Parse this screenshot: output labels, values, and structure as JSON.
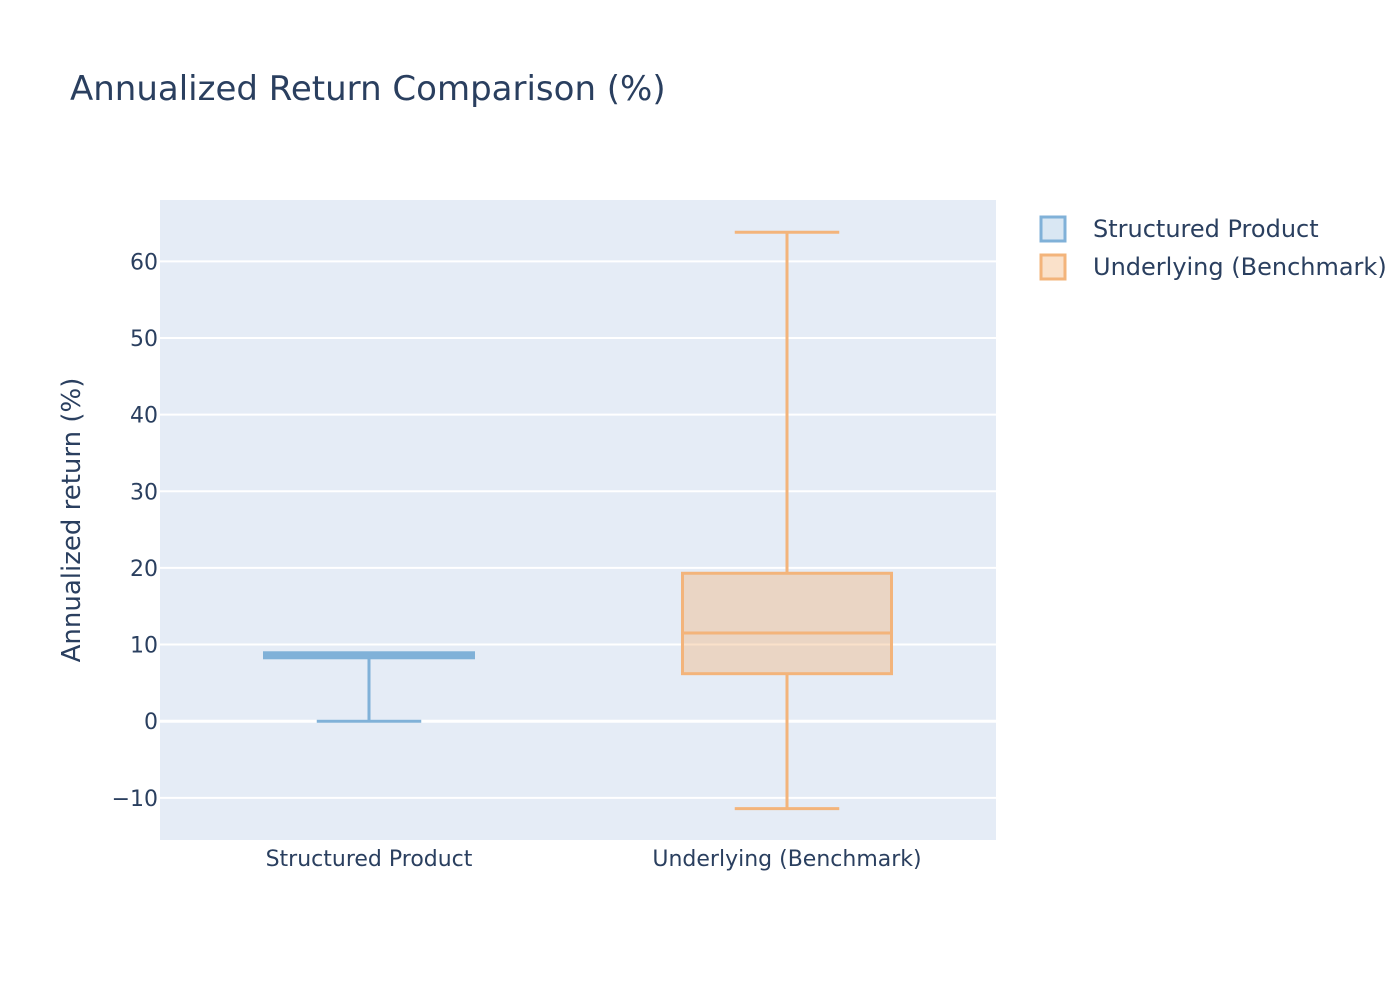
{
  "chart_data": {
    "type": "box",
    "title": "Annualized Return Comparison (%)",
    "xlabel": "",
    "ylabel": "Annualized return (%)",
    "ylim": [
      -15.5,
      68
    ],
    "yticks": [
      -10,
      0,
      10,
      20,
      30,
      40,
      50,
      60
    ],
    "ytick_labels": [
      "−10",
      "0",
      "10",
      "20",
      "30",
      "40",
      "50",
      "60"
    ],
    "grid": true,
    "legend_position": "top-right",
    "categories": [
      "Structured Product",
      "Underlying (Benchmark)"
    ],
    "series": [
      {
        "name": "Structured Product",
        "color": "#80b1d8",
        "fill": "rgba(128,177,216,0.3)",
        "min": 0,
        "q1": 8.6,
        "median": 8.6,
        "q3": 8.6,
        "max": 8.6
      },
      {
        "name": "Underlying (Benchmark)",
        "color": "#f3b47b",
        "fill": "rgba(243,180,123,0.4)",
        "min": -11.4,
        "q1": 6.2,
        "median": 11.5,
        "q3": 19.3,
        "max": 63.8
      }
    ]
  }
}
